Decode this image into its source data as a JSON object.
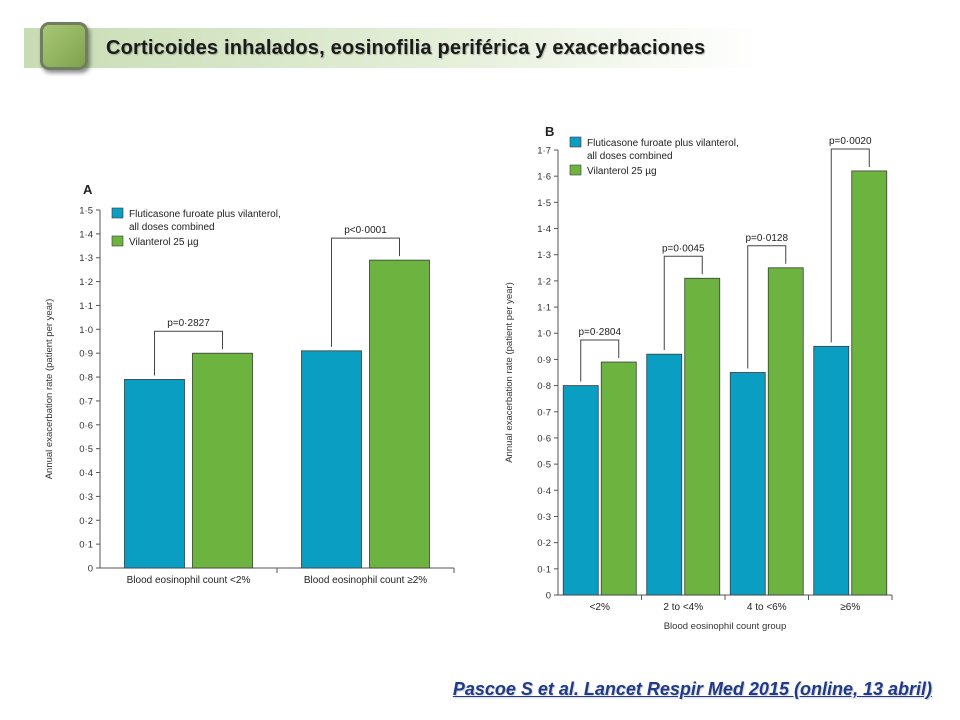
{
  "slide": {
    "title": "Corticoides inhalados, eosinofilia periférica y exacerbaciones",
    "citation": "Pascoe S et al. Lancet Respir Med 2015 (online, 13 abril)"
  },
  "colors": {
    "fluticasone": "#0a9fc2",
    "vilanterol": "#6db33f",
    "title_band": "#c8dcb4",
    "citation": "#1f3a8a"
  },
  "chart_data": [
    {
      "type": "bar",
      "panel": "A",
      "ylabel": "Annual exacerbation rate (patient per year)",
      "xlabel": "",
      "ylim": [
        0,
        1.5
      ],
      "yticks": [
        "0",
        "0·1",
        "0·2",
        "0·3",
        "0·4",
        "0·5",
        "0·6",
        "0·7",
        "0·8",
        "0·9",
        "1·0",
        "1·1",
        "1·2",
        "1·3",
        "1·4",
        "1·5"
      ],
      "categories": [
        "Blood eosinophil count <2%",
        "Blood eosinophil count ≥2%"
      ],
      "legend": [
        "Fluticasone furoate plus vilanterol,",
        "all doses combined",
        "Vilanterol 25 µg"
      ],
      "legend_position": "top-left",
      "series": [
        {
          "name": "Fluticasone furoate plus vilanterol, all doses combined",
          "values": [
            0.79,
            0.91
          ]
        },
        {
          "name": "Vilanterol 25 µg",
          "values": [
            0.9,
            1.29
          ]
        }
      ],
      "p_values": [
        "p=0·2827",
        "p<0·0001"
      ],
      "grid": false
    },
    {
      "type": "bar",
      "panel": "B",
      "ylabel": "Annual exacerbation rate (patient per year)",
      "xlabel": "Blood eosinophil count group",
      "ylim": [
        0,
        1.7
      ],
      "yticks": [
        "0",
        "0·1",
        "0·2",
        "0·3",
        "0·4",
        "0·5",
        "0·6",
        "0·7",
        "0·8",
        "0·9",
        "1·0",
        "1·1",
        "1·2",
        "1·3",
        "1·4",
        "1·5",
        "1·6",
        "1·7"
      ],
      "categories": [
        "<2%",
        "2 to <4%",
        "4 to <6%",
        "≥6%"
      ],
      "legend": [
        "Fluticasone furoate plus vilanterol,",
        "all doses combined",
        "Vilanterol 25 µg"
      ],
      "legend_position": "top-left",
      "series": [
        {
          "name": "Fluticasone furoate plus vilanterol, all doses combined",
          "values": [
            0.8,
            0.92,
            0.85,
            0.95
          ]
        },
        {
          "name": "Vilanterol 25 µg",
          "values": [
            0.89,
            1.21,
            1.25,
            1.62
          ]
        }
      ],
      "p_values": [
        "p=0·2804",
        "p=0·0045",
        "p=0·0128",
        "p=0·0020"
      ],
      "grid": false
    }
  ]
}
